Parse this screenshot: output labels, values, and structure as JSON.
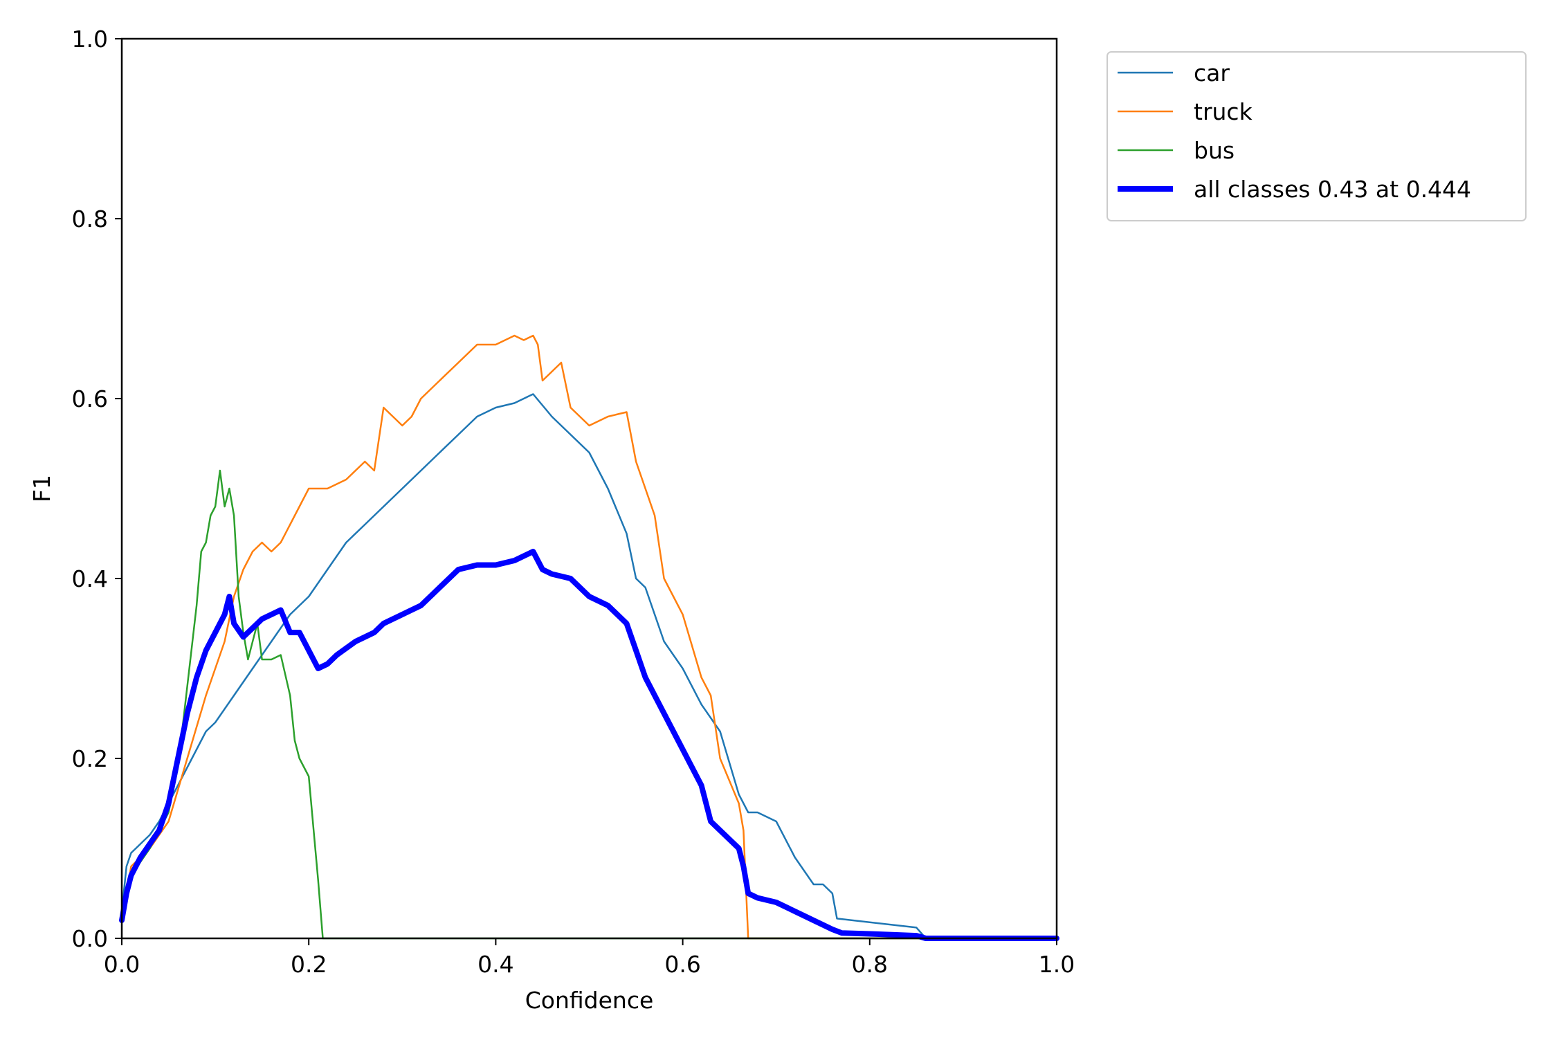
{
  "chart_data": {
    "type": "line",
    "title": "",
    "xlabel": "Confidence",
    "ylabel": "F1",
    "xlim": [
      0,
      1
    ],
    "ylim": [
      0,
      1
    ],
    "xticks": [
      "0.0",
      "0.2",
      "0.4",
      "0.6",
      "0.8",
      "1.0"
    ],
    "yticks": [
      "0.0",
      "0.2",
      "0.4",
      "0.6",
      "0.8",
      "1.0"
    ],
    "grid": false,
    "legend_position": "outside-top-right",
    "series": [
      {
        "name": "car",
        "color": "#1f77b4",
        "x": [
          0.0,
          0.005,
          0.01,
          0.015,
          0.02,
          0.03,
          0.04,
          0.05,
          0.06,
          0.07,
          0.08,
          0.09,
          0.1,
          0.12,
          0.14,
          0.16,
          0.18,
          0.2,
          0.22,
          0.24,
          0.26,
          0.28,
          0.3,
          0.32,
          0.34,
          0.36,
          0.38,
          0.4,
          0.42,
          0.43,
          0.44,
          0.46,
          0.48,
          0.5,
          0.52,
          0.54,
          0.55,
          0.56,
          0.58,
          0.6,
          0.62,
          0.64,
          0.66,
          0.67,
          0.68,
          0.7,
          0.72,
          0.74,
          0.75,
          0.76,
          0.765,
          0.85,
          0.86,
          1.0
        ],
        "y": [
          0.03,
          0.08,
          0.095,
          0.1,
          0.105,
          0.115,
          0.13,
          0.15,
          0.17,
          0.19,
          0.21,
          0.23,
          0.24,
          0.27,
          0.3,
          0.33,
          0.36,
          0.38,
          0.41,
          0.44,
          0.46,
          0.48,
          0.5,
          0.52,
          0.54,
          0.56,
          0.58,
          0.59,
          0.595,
          0.6,
          0.605,
          0.58,
          0.56,
          0.54,
          0.5,
          0.45,
          0.4,
          0.39,
          0.33,
          0.3,
          0.26,
          0.23,
          0.16,
          0.14,
          0.14,
          0.13,
          0.09,
          0.06,
          0.06,
          0.05,
          0.022,
          0.012,
          0.0,
          0.0
        ]
      },
      {
        "name": "truck",
        "color": "#ff7f0e",
        "x": [
          0.0,
          0.01,
          0.03,
          0.05,
          0.07,
          0.09,
          0.1,
          0.11,
          0.12,
          0.13,
          0.14,
          0.15,
          0.16,
          0.17,
          0.18,
          0.19,
          0.2,
          0.22,
          0.24,
          0.26,
          0.27,
          0.28,
          0.29,
          0.3,
          0.31,
          0.32,
          0.34,
          0.36,
          0.38,
          0.4,
          0.42,
          0.43,
          0.44,
          0.445,
          0.45,
          0.46,
          0.47,
          0.48,
          0.5,
          0.52,
          0.54,
          0.55,
          0.56,
          0.57,
          0.58,
          0.6,
          0.62,
          0.63,
          0.64,
          0.66,
          0.665,
          0.67,
          1.0
        ],
        "y": [
          0.02,
          0.08,
          0.1,
          0.13,
          0.2,
          0.27,
          0.3,
          0.33,
          0.38,
          0.41,
          0.43,
          0.44,
          0.43,
          0.44,
          0.46,
          0.48,
          0.5,
          0.5,
          0.51,
          0.53,
          0.52,
          0.59,
          0.58,
          0.57,
          0.58,
          0.6,
          0.62,
          0.64,
          0.66,
          0.66,
          0.67,
          0.665,
          0.67,
          0.66,
          0.62,
          0.63,
          0.64,
          0.59,
          0.57,
          0.58,
          0.585,
          0.53,
          0.5,
          0.47,
          0.4,
          0.36,
          0.29,
          0.27,
          0.2,
          0.15,
          0.12,
          0.0,
          0.0
        ]
      },
      {
        "name": "bus",
        "color": "#2ca02c",
        "x": [
          0.0,
          0.01,
          0.03,
          0.05,
          0.06,
          0.07,
          0.08,
          0.085,
          0.09,
          0.095,
          0.1,
          0.105,
          0.11,
          0.115,
          0.12,
          0.125,
          0.13,
          0.135,
          0.14,
          0.145,
          0.15,
          0.16,
          0.17,
          0.18,
          0.185,
          0.19,
          0.2,
          0.21,
          0.215,
          1.0
        ],
        "y": [
          0.02,
          0.07,
          0.1,
          0.14,
          0.19,
          0.28,
          0.37,
          0.43,
          0.44,
          0.47,
          0.48,
          0.52,
          0.48,
          0.5,
          0.47,
          0.38,
          0.34,
          0.31,
          0.33,
          0.35,
          0.31,
          0.31,
          0.315,
          0.27,
          0.22,
          0.2,
          0.18,
          0.065,
          0.0,
          0.0
        ]
      },
      {
        "name": "all classes 0.43 at 0.444",
        "color": "#0000ff",
        "x": [
          0.0,
          0.005,
          0.01,
          0.02,
          0.04,
          0.05,
          0.06,
          0.07,
          0.08,
          0.09,
          0.1,
          0.11,
          0.115,
          0.12,
          0.13,
          0.14,
          0.15,
          0.16,
          0.17,
          0.18,
          0.19,
          0.2,
          0.21,
          0.22,
          0.23,
          0.25,
          0.27,
          0.28,
          0.29,
          0.3,
          0.32,
          0.34,
          0.36,
          0.38,
          0.4,
          0.42,
          0.44,
          0.45,
          0.46,
          0.48,
          0.5,
          0.52,
          0.54,
          0.55,
          0.56,
          0.58,
          0.6,
          0.62,
          0.63,
          0.64,
          0.66,
          0.665,
          0.67,
          0.68,
          0.7,
          0.72,
          0.74,
          0.76,
          0.77,
          0.8,
          0.85,
          0.86,
          1.0
        ],
        "y": [
          0.02,
          0.05,
          0.07,
          0.09,
          0.12,
          0.15,
          0.2,
          0.25,
          0.29,
          0.32,
          0.34,
          0.36,
          0.38,
          0.35,
          0.335,
          0.345,
          0.355,
          0.36,
          0.365,
          0.34,
          0.34,
          0.32,
          0.3,
          0.305,
          0.315,
          0.33,
          0.34,
          0.35,
          0.355,
          0.36,
          0.37,
          0.39,
          0.41,
          0.415,
          0.415,
          0.42,
          0.43,
          0.41,
          0.405,
          0.4,
          0.38,
          0.37,
          0.35,
          0.32,
          0.29,
          0.25,
          0.21,
          0.17,
          0.13,
          0.12,
          0.1,
          0.08,
          0.05,
          0.045,
          0.04,
          0.03,
          0.02,
          0.01,
          0.006,
          0.005,
          0.003,
          0.0,
          0.0
        ]
      }
    ]
  }
}
